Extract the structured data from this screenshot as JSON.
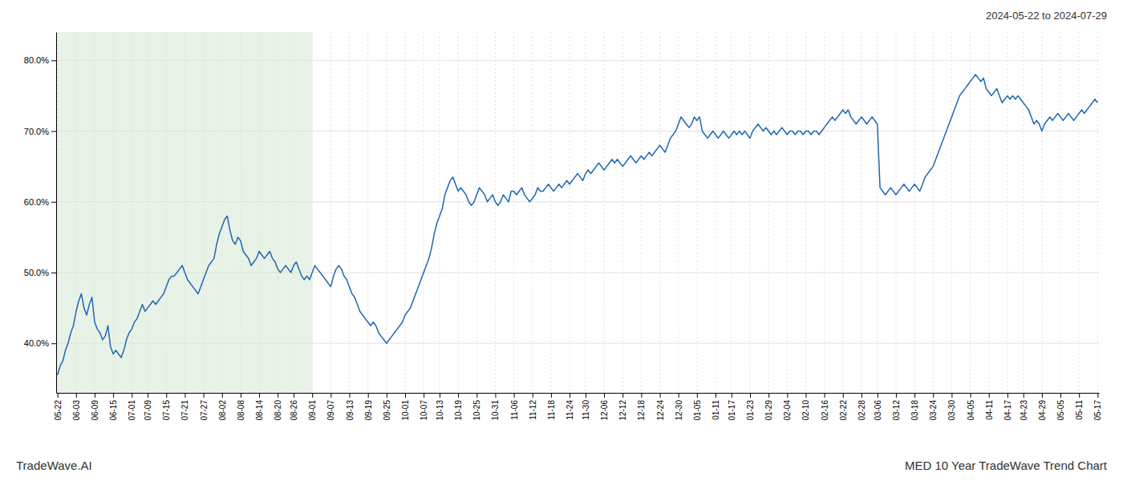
{
  "chart_data": {
    "type": "line",
    "title": "MED 10 Year TradeWave Trend Chart",
    "subtitle": "2024-05-22 to 2024-07-29",
    "annotations": [
      "TradeWave.AI"
    ],
    "color": "#2068b0",
    "grid": true,
    "ylim": [
      0.33,
      0.84
    ],
    "yticks": [
      {
        "value": 0.4,
        "label": "40.0%"
      },
      {
        "value": 0.5,
        "label": "50.0%"
      },
      {
        "value": 0.6,
        "label": "60.0%"
      },
      {
        "value": 0.7,
        "label": "70.0%"
      },
      {
        "value": 0.8,
        "label": "80.0%"
      }
    ],
    "shade": {
      "from": 0,
      "to": 96.04,
      "color": "#d5e8d4"
    },
    "categories": [
      "05-22",
      null,
      null,
      null,
      null,
      null,
      null,
      "06-03",
      null,
      null,
      null,
      null,
      null,
      null,
      "06-09",
      null,
      null,
      null,
      null,
      null,
      null,
      "06-15",
      null,
      null,
      null,
      null,
      null,
      null,
      "07-01",
      null,
      null,
      null,
      null,
      null,
      "07-09",
      null,
      null,
      null,
      null,
      null,
      null,
      "07-15",
      null,
      null,
      null,
      null,
      null,
      null,
      "07-21",
      null,
      null,
      null,
      null,
      null,
      null,
      "07-27",
      null,
      null,
      null,
      null,
      null,
      null,
      "08-02",
      null,
      null,
      null,
      null,
      null,
      null,
      "08-08",
      null,
      null,
      null,
      null,
      null,
      null,
      "08-14",
      null,
      null,
      null,
      null,
      null,
      null,
      "08-20",
      null,
      null,
      null,
      null,
      null,
      "08-26",
      null,
      null,
      null,
      null,
      null,
      null,
      "09-01",
      null,
      null,
      null,
      null,
      null,
      null,
      "09-07",
      null,
      null,
      null,
      null,
      null,
      null,
      "09-13",
      null,
      null,
      null,
      null,
      null,
      null,
      "09-19",
      null,
      null,
      null,
      null,
      null,
      null,
      "09-25",
      null,
      null,
      null,
      null,
      null,
      null,
      "10-01",
      null,
      null,
      null,
      null,
      null,
      null,
      "10-07",
      null,
      null,
      null,
      null,
      null,
      "10-13",
      null,
      null,
      null,
      null,
      null,
      null,
      "10-19",
      null,
      null,
      null,
      null,
      null,
      null,
      "10-25",
      null,
      null,
      null,
      null,
      null,
      null,
      "10-31",
      null,
      null,
      null,
      null,
      null,
      null,
      "11-06",
      null,
      null,
      null,
      null,
      null,
      null,
      "11-12",
      null,
      null,
      null,
      null,
      null,
      null,
      "11-18",
      null,
      null,
      null,
      null,
      null,
      null,
      "11-24",
      null,
      null,
      null,
      null,
      null,
      "11-30",
      null,
      null,
      null,
      null,
      null,
      null,
      "12-06",
      null,
      null,
      null,
      null,
      null,
      null,
      "12-12",
      null,
      null,
      null,
      null,
      null,
      null,
      "12-18",
      null,
      null,
      null,
      null,
      null,
      null,
      "12-24",
      null,
      null,
      null,
      null,
      null,
      null,
      "12-30",
      null,
      null,
      null,
      null,
      null,
      null,
      "01-05",
      null,
      null,
      null,
      null,
      null,
      null,
      "01-11",
      null,
      null,
      null,
      null,
      null,
      "01-17",
      null,
      null,
      null,
      null,
      null,
      null,
      "01-23",
      null,
      null,
      null,
      null,
      null,
      null,
      "01-29",
      null,
      null,
      null,
      null,
      null,
      null,
      "02-04",
      null,
      null,
      null,
      null,
      null,
      null,
      "02-10",
      null,
      null,
      null,
      null,
      null,
      null,
      "02-16",
      null,
      null,
      null,
      null,
      null,
      null,
      "02-22",
      null,
      null,
      null,
      null,
      null,
      null,
      "02-28",
      null,
      null,
      null,
      null,
      null,
      "03-06",
      null,
      null,
      null,
      null,
      null,
      null,
      "03-12",
      null,
      null,
      null,
      null,
      null,
      null,
      "03-18",
      null,
      null,
      null,
      null,
      null,
      null,
      "03-24",
      null,
      null,
      null,
      null,
      null,
      null,
      "03-30",
      null,
      null,
      null,
      null,
      null,
      null,
      "04-05",
      null,
      null,
      null,
      null,
      null,
      null,
      "04-11",
      null,
      null,
      null,
      null,
      null,
      null,
      "04-17",
      null,
      null,
      null,
      null,
      null,
      "04-23",
      null,
      null,
      null,
      null,
      null,
      null,
      "04-29",
      null,
      null,
      null,
      null,
      null,
      null,
      "05-05",
      null,
      null,
      null,
      null,
      null,
      null,
      "05-11",
      null,
      null,
      null,
      null,
      null,
      null,
      "05-17"
    ],
    "values": [
      0.355,
      0.368,
      0.375,
      0.39,
      0.4,
      0.415,
      0.425,
      0.445,
      0.46,
      0.47,
      0.45,
      0.44,
      0.455,
      0.465,
      0.43,
      0.42,
      0.415,
      0.405,
      0.41,
      0.425,
      0.395,
      0.385,
      0.39,
      0.385,
      0.38,
      0.39,
      0.405,
      0.415,
      0.42,
      0.43,
      0.435,
      0.445,
      0.455,
      0.445,
      0.45,
      0.455,
      0.46,
      0.455,
      0.46,
      0.465,
      0.47,
      0.48,
      0.49,
      0.495,
      0.495,
      0.5,
      0.505,
      0.51,
      0.5,
      0.49,
      0.485,
      0.48,
      0.475,
      0.47,
      0.48,
      0.49,
      0.5,
      0.51,
      0.515,
      0.52,
      0.54,
      0.555,
      0.565,
      0.575,
      0.58,
      0.56,
      0.545,
      0.54,
      0.55,
      0.545,
      0.53,
      0.525,
      0.52,
      0.51,
      0.515,
      0.52,
      0.53,
      0.525,
      0.52,
      0.525,
      0.53,
      0.52,
      0.515,
      0.505,
      0.5,
      0.505,
      0.51,
      0.505,
      0.5,
      0.51,
      0.515,
      0.505,
      0.495,
      0.49,
      0.495,
      0.49,
      0.5,
      0.51,
      0.505,
      0.5,
      0.495,
      0.49,
      0.485,
      0.48,
      0.495,
      0.505,
      0.51,
      0.505,
      0.495,
      0.49,
      0.48,
      0.47,
      0.465,
      0.455,
      0.445,
      0.44,
      0.435,
      0.43,
      0.425,
      0.43,
      0.425,
      0.415,
      0.41,
      0.405,
      0.4,
      0.405,
      0.41,
      0.415,
      0.42,
      0.425,
      0.43,
      0.44,
      0.445,
      0.45,
      0.46,
      0.47,
      0.48,
      0.49,
      0.5,
      0.51,
      0.52,
      0.535,
      0.555,
      0.57,
      0.58,
      0.59,
      0.61,
      0.62,
      0.63,
      0.635,
      0.625,
      0.615,
      0.62,
      0.615,
      0.61,
      0.6,
      0.595,
      0.6,
      0.61,
      0.62,
      0.615,
      0.61,
      0.6,
      0.605,
      0.61,
      0.6,
      0.595,
      0.6,
      0.61,
      0.605,
      0.6,
      0.615,
      0.615,
      0.61,
      0.615,
      0.62,
      0.61,
      0.605,
      0.6,
      0.605,
      0.61,
      0.62,
      0.615,
      0.615,
      0.62,
      0.625,
      0.62,
      0.615,
      0.62,
      0.625,
      0.62,
      0.625,
      0.63,
      0.625,
      0.63,
      0.635,
      0.64,
      0.635,
      0.63,
      0.64,
      0.645,
      0.64,
      0.645,
      0.65,
      0.655,
      0.65,
      0.645,
      0.65,
      0.655,
      0.66,
      0.655,
      0.66,
      0.655,
      0.65,
      0.655,
      0.66,
      0.665,
      0.66,
      0.655,
      0.66,
      0.665,
      0.66,
      0.665,
      0.67,
      0.665,
      0.67,
      0.675,
      0.68,
      0.675,
      0.67,
      0.68,
      0.69,
      0.695,
      0.7,
      0.71,
      0.72,
      0.715,
      0.71,
      0.705,
      0.71,
      0.72,
      0.715,
      0.72,
      0.7,
      0.695,
      0.69,
      0.695,
      0.7,
      0.695,
      0.69,
      0.695,
      0.7,
      0.695,
      0.69,
      0.695,
      0.7,
      0.695,
      0.7,
      0.695,
      0.7,
      0.695,
      0.69,
      0.7,
      0.705,
      0.71,
      0.705,
      0.7,
      0.705,
      0.7,
      0.695,
      0.7,
      0.695,
      0.7,
      0.705,
      0.7,
      0.695,
      0.7,
      0.7,
      0.695,
      0.7,
      0.7,
      0.695,
      0.7,
      0.7,
      0.695,
      0.7,
      0.7,
      0.695,
      0.7,
      0.705,
      0.71,
      0.715,
      0.72,
      0.715,
      0.72,
      0.725,
      0.73,
      0.725,
      0.73,
      0.72,
      0.715,
      0.71,
      0.715,
      0.72,
      0.715,
      0.71,
      0.715,
      0.72,
      0.715,
      0.71,
      0.62,
      0.615,
      0.61,
      0.615,
      0.62,
      0.615,
      0.61,
      0.615,
      0.62,
      0.625,
      0.62,
      0.615,
      0.62,
      0.625,
      0.62,
      0.615,
      0.625,
      0.635,
      0.64,
      0.645,
      0.65,
      0.66,
      0.67,
      0.68,
      0.69,
      0.7,
      0.71,
      0.72,
      0.73,
      0.74,
      0.75,
      0.755,
      0.76,
      0.765,
      0.77,
      0.775,
      0.78,
      0.775,
      0.77,
      0.775,
      0.76,
      0.755,
      0.75,
      0.755,
      0.76,
      0.75,
      0.74,
      0.745,
      0.75,
      0.745,
      0.75,
      0.745,
      0.75,
      0.745,
      0.74,
      0.735,
      0.73,
      0.72,
      0.71,
      0.715,
      0.71,
      0.7,
      0.71,
      0.715,
      0.72,
      0.715,
      0.72,
      0.725,
      0.72,
      0.715,
      0.72,
      0.725,
      0.72,
      0.715,
      0.72,
      0.725,
      0.73,
      0.725,
      0.73,
      0.735,
      0.74,
      0.745,
      0.74
    ]
  }
}
